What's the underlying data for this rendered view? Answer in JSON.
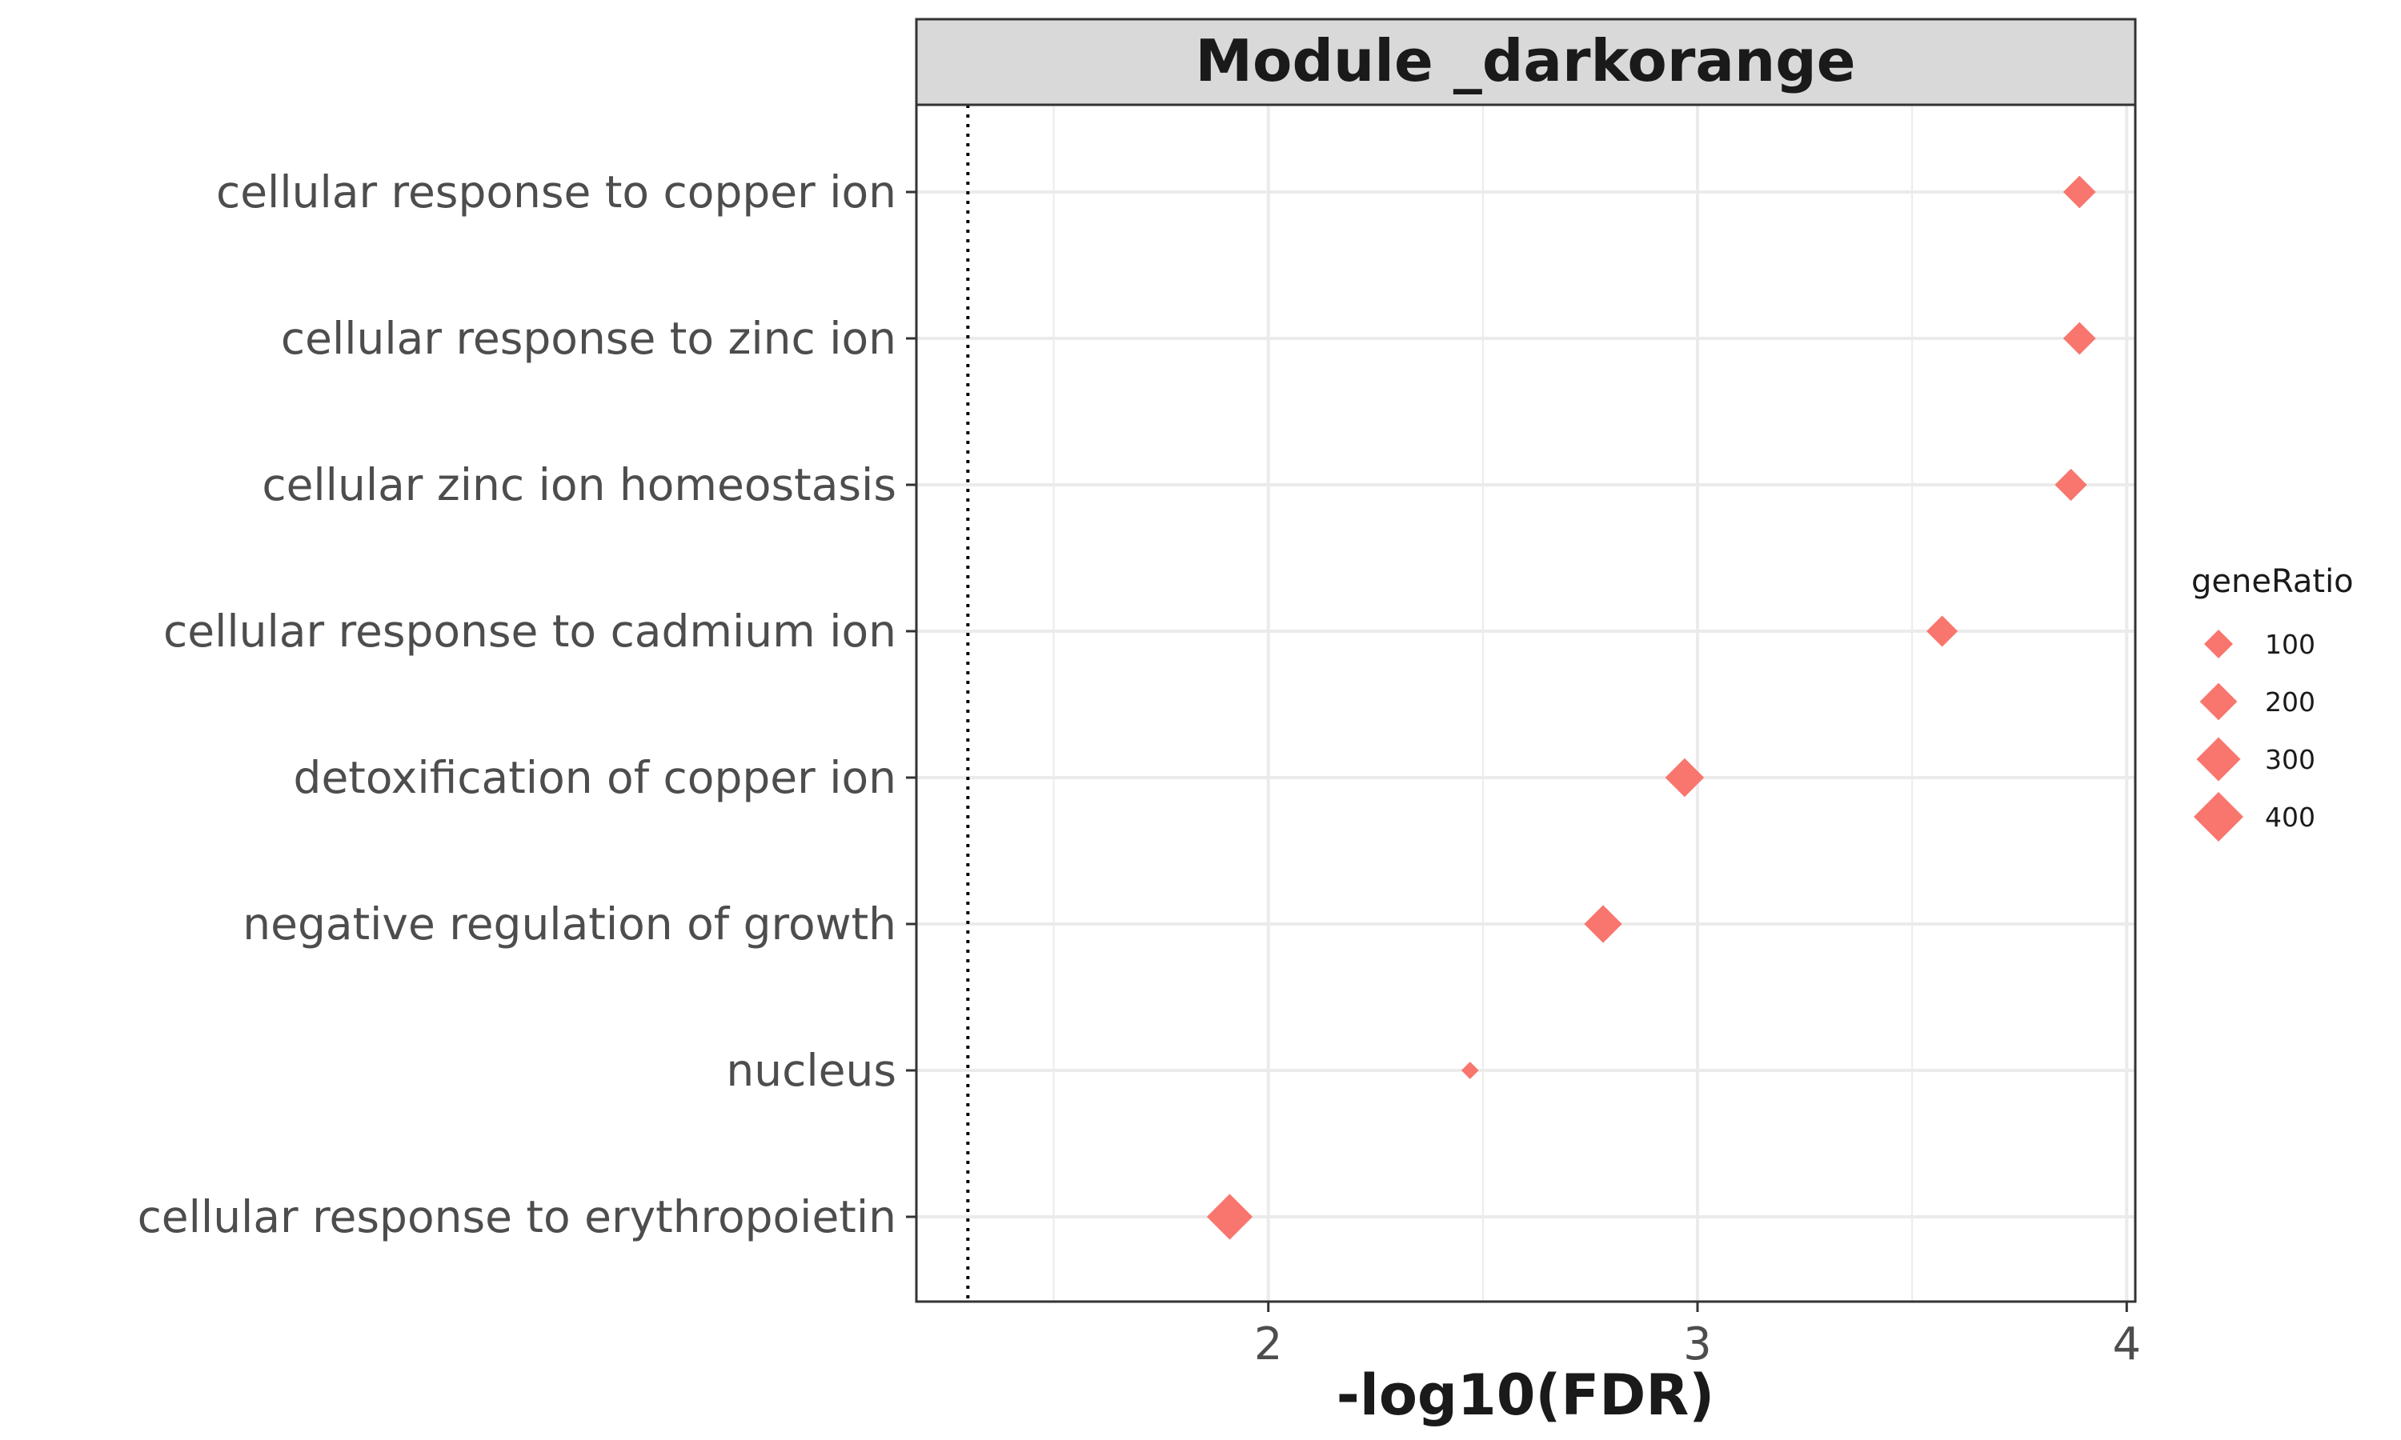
{
  "chart_data": {
    "type": "scatter",
    "title": "Module _darkorange",
    "xlabel": "-log10(FDR)",
    "ylabel": "",
    "xlim": [
      1.18,
      4.02
    ],
    "xticks": [
      "2",
      "3",
      "4"
    ],
    "threshold_line_x": 1.3,
    "marker_shape": "diamond",
    "marker_color": "#F8766D",
    "grid": true,
    "legend": {
      "title": "geneRatio",
      "placement": "right",
      "entries": [
        "100",
        "200",
        "300",
        "400"
      ],
      "values": [
        100,
        200,
        300,
        400
      ]
    },
    "categories": [
      "cellular response to copper ion",
      "cellular response to zinc ion",
      "cellular zinc ion homeostasis",
      "cellular response to cadmium ion",
      "detoxification of copper ion",
      "negative regulation of growth",
      "nucleus",
      "cellular response to erythropoietin"
    ],
    "x": [
      3.89,
      3.89,
      3.87,
      3.57,
      2.97,
      2.78,
      2.47,
      1.91
    ],
    "geneRatio": [
      140,
      140,
      135,
      125,
      220,
      205,
      20,
      330
    ]
  }
}
